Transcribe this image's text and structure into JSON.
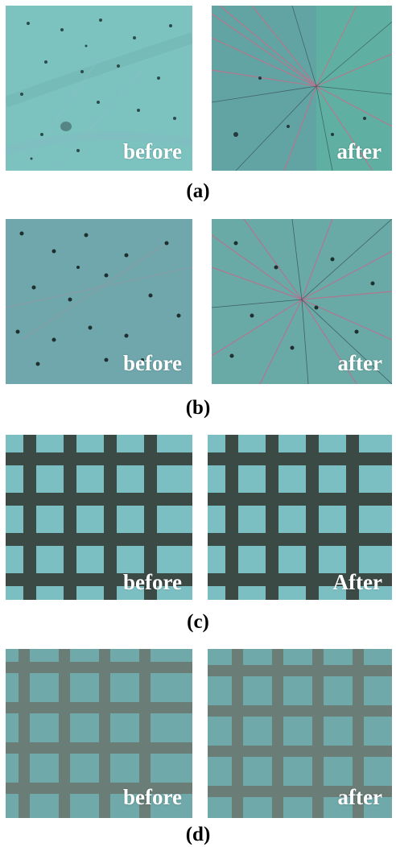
{
  "figure": {
    "rows": [
      {
        "caption": "(a)",
        "left_label": "before",
        "right_label": "after"
      },
      {
        "caption": "(b)",
        "left_label": "before",
        "right_label": "after"
      },
      {
        "caption": "(c)",
        "left_label": "before",
        "right_label": "After"
      },
      {
        "caption": "(d)",
        "left_label": "before",
        "right_label": "after"
      }
    ]
  },
  "colors": {
    "base_teal": "#7cc3c0",
    "dark_teal": "#5a9c98",
    "grid_line": "#3c4a45",
    "stress_pink": "#c2708a",
    "label_white": "#ffffff"
  }
}
